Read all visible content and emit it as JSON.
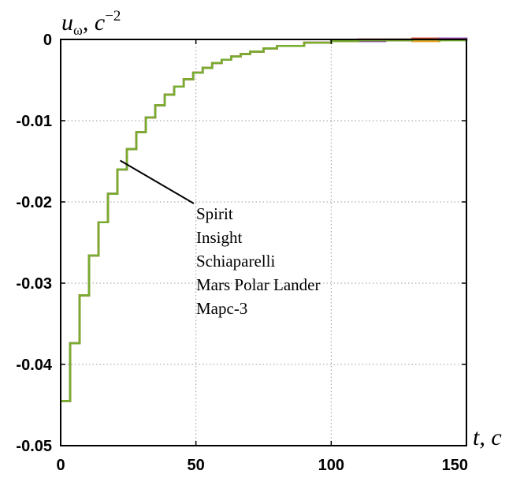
{
  "chart_data": {
    "type": "line",
    "ylabel_var": "u",
    "ylabel_sub": "ω",
    "ylabel_unit": ", c",
    "ylabel_exp": "−2",
    "xlabel_var": "t",
    "xlabel_unit": ", c",
    "xlim": [
      0,
      150
    ],
    "ylim": [
      -0.05,
      0
    ],
    "xticks": [
      0,
      50,
      100,
      150
    ],
    "xtick_labels": [
      "0",
      "50",
      "100",
      "150"
    ],
    "yticks": [
      0,
      -0.01,
      -0.02,
      -0.03,
      -0.04,
      -0.05
    ],
    "ytick_labels": [
      "0",
      "-0.01",
      "-0.02",
      "-0.03",
      "-0.04",
      "-0.05"
    ],
    "grid": true,
    "annotation_point": [
      22,
      -0.0149
    ],
    "series": [
      {
        "name": "Spirit",
        "color": "#4a4a4a",
        "x": [
          0,
          3.5,
          7,
          10.5,
          14,
          17.5,
          21,
          24.5,
          28,
          31.5,
          35,
          38.5,
          42,
          45.5,
          49,
          52.5,
          56,
          59.5,
          63,
          66.5,
          70,
          75,
          80,
          90,
          100,
          110,
          120,
          130,
          140,
          150
        ],
        "y": [
          -0.0445,
          -0.0374,
          -0.0315,
          -0.0266,
          -0.0225,
          -0.019,
          -0.016,
          -0.0135,
          -0.0114,
          -0.0096,
          -0.0081,
          -0.0068,
          -0.0058,
          -0.0049,
          -0.0041,
          -0.0035,
          -0.0029,
          -0.0025,
          -0.0021,
          -0.0018,
          -0.0015,
          -0.0011,
          -0.0008,
          -0.0004,
          -0.0002,
          -0.0001,
          -0.0001,
          0.0,
          0.0,
          0.0
        ]
      },
      {
        "name": "Insight",
        "color": "#d62b2b",
        "x": [
          0,
          3.5,
          7,
          10.5,
          14,
          17.5,
          21,
          24.5,
          28,
          31.5,
          35,
          38.5,
          42,
          45.5,
          49,
          52.5,
          56,
          59.5,
          63,
          66.5,
          70,
          75,
          80,
          90,
          100,
          110,
          120,
          130,
          140,
          150
        ],
        "y": [
          -0.0445,
          -0.0374,
          -0.0315,
          -0.0266,
          -0.0225,
          -0.019,
          -0.016,
          -0.0135,
          -0.0114,
          -0.0096,
          -0.0081,
          -0.0068,
          -0.0058,
          -0.0049,
          -0.0041,
          -0.0035,
          -0.0029,
          -0.0025,
          -0.0021,
          -0.0018,
          -0.0015,
          -0.0011,
          -0.0008,
          -0.0004,
          -0.0002,
          0.0,
          -0.0001,
          0.0001,
          0.0,
          -0.0001
        ]
      },
      {
        "name": "Schiaparelli",
        "color": "#7b2fbf",
        "x": [
          0,
          3.5,
          7,
          10.5,
          14,
          17.5,
          21,
          24.5,
          28,
          31.5,
          35,
          38.5,
          42,
          45.5,
          49,
          52.5,
          56,
          59.5,
          63,
          66.5,
          70,
          75,
          80,
          90,
          100,
          110,
          120,
          130,
          140,
          150
        ],
        "y": [
          -0.0445,
          -0.0374,
          -0.0315,
          -0.0266,
          -0.0225,
          -0.019,
          -0.016,
          -0.0135,
          -0.0114,
          -0.0096,
          -0.0081,
          -0.0068,
          -0.0058,
          -0.0049,
          -0.0041,
          -0.0035,
          -0.0029,
          -0.0025,
          -0.0021,
          -0.0018,
          -0.0015,
          -0.0011,
          -0.0008,
          -0.0004,
          -0.0001,
          -0.0002,
          0.0,
          -0.0001,
          0.0001,
          0.0
        ]
      },
      {
        "name": "Mars Polar Lander",
        "color": "#e0a020",
        "x": [
          0,
          3.5,
          7,
          10.5,
          14,
          17.5,
          21,
          24.5,
          28,
          31.5,
          35,
          38.5,
          42,
          45.5,
          49,
          52.5,
          56,
          59.5,
          63,
          66.5,
          70,
          75,
          80,
          90,
          100,
          110,
          120,
          130,
          140,
          150
        ],
        "y": [
          -0.0445,
          -0.0374,
          -0.0315,
          -0.0266,
          -0.0225,
          -0.019,
          -0.016,
          -0.0135,
          -0.0114,
          -0.0096,
          -0.0081,
          -0.0068,
          -0.0058,
          -0.0049,
          -0.0041,
          -0.0035,
          -0.0029,
          -0.0025,
          -0.0021,
          -0.0018,
          -0.0015,
          -0.0011,
          -0.0008,
          -0.0004,
          -0.0002,
          -0.0001,
          0.0,
          -0.0002,
          0.0,
          0.0001
        ]
      },
      {
        "name": "Марс-3",
        "color": "#77ac30",
        "x": [
          0,
          3.5,
          7,
          10.5,
          14,
          17.5,
          21,
          24.5,
          28,
          31.5,
          35,
          38.5,
          42,
          45.5,
          49,
          52.5,
          56,
          59.5,
          63,
          66.5,
          70,
          75,
          80,
          90,
          100,
          110,
          120,
          130,
          140,
          150
        ],
        "y": [
          -0.0445,
          -0.0374,
          -0.0315,
          -0.0266,
          -0.0225,
          -0.019,
          -0.016,
          -0.0135,
          -0.0114,
          -0.0096,
          -0.0081,
          -0.0068,
          -0.0058,
          -0.0049,
          -0.0041,
          -0.0035,
          -0.0029,
          -0.0025,
          -0.0021,
          -0.0018,
          -0.0015,
          -0.0011,
          -0.0008,
          -0.0004,
          -0.0002,
          -0.0001,
          -0.0001,
          0.0,
          -0.0001,
          0.0
        ]
      }
    ]
  }
}
